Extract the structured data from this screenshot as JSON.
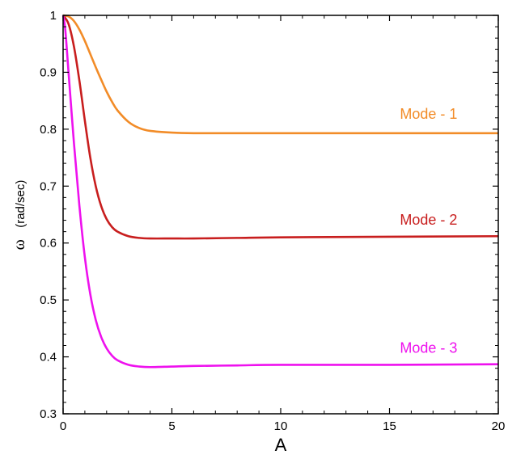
{
  "chart_data": {
    "type": "line",
    "title": "",
    "xlabel": "A",
    "ylabel": "ω",
    "ylabel_unit": "(rad/sec)",
    "xlim": [
      0,
      20
    ],
    "ylim": [
      0.3,
      1
    ],
    "xticks": [
      0,
      5,
      10,
      15,
      20
    ],
    "yticks": [
      0.3,
      0.4,
      0.5,
      0.6,
      0.7,
      0.8,
      0.9,
      1
    ],
    "xtick_labels": [
      "0",
      "5",
      "10",
      "15",
      "20"
    ],
    "ytick_labels": [
      "0.3",
      "0.4",
      "0.5",
      "0.6",
      "0.7",
      "0.8",
      "0.9",
      "1"
    ],
    "grid": false,
    "legend": "inline labels",
    "series": [
      {
        "name": "Mode - 1",
        "color": "#F28C28",
        "x": [
          0,
          0.25,
          0.5,
          0.75,
          1,
          1.25,
          1.5,
          1.75,
          2,
          2.25,
          2.5,
          3,
          3.5,
          4,
          5,
          6,
          8,
          10,
          15,
          20
        ],
        "y": [
          1.0,
          0.998,
          0.99,
          0.975,
          0.955,
          0.932,
          0.909,
          0.887,
          0.866,
          0.848,
          0.833,
          0.813,
          0.802,
          0.797,
          0.794,
          0.793,
          0.793,
          0.793,
          0.793,
          0.793
        ]
      },
      {
        "name": "Mode - 2",
        "color": "#C81E1E",
        "x": [
          0,
          0.25,
          0.5,
          0.75,
          1,
          1.25,
          1.5,
          1.75,
          2,
          2.25,
          2.5,
          3,
          3.5,
          4,
          5,
          6,
          8,
          10,
          15,
          20
        ],
        "y": [
          1.0,
          0.985,
          0.945,
          0.885,
          0.815,
          0.75,
          0.7,
          0.665,
          0.642,
          0.628,
          0.62,
          0.612,
          0.609,
          0.608,
          0.608,
          0.608,
          0.609,
          0.61,
          0.611,
          0.612
        ]
      },
      {
        "name": "Mode - 3",
        "color": "#EE11EE",
        "x": [
          0,
          0.1,
          0.25,
          0.5,
          0.75,
          1,
          1.25,
          1.5,
          1.75,
          2,
          2.25,
          2.5,
          3,
          3.5,
          4,
          5,
          6,
          8,
          10,
          15,
          20
        ],
        "y": [
          1.0,
          0.975,
          0.9,
          0.775,
          0.665,
          0.575,
          0.51,
          0.465,
          0.435,
          0.415,
          0.402,
          0.394,
          0.386,
          0.383,
          0.382,
          0.383,
          0.384,
          0.385,
          0.386,
          0.386,
          0.387
        ]
      }
    ],
    "annotations": [
      {
        "text": "Mode - 1",
        "x": 16.8,
        "y": 0.818,
        "color": "#F28C28"
      },
      {
        "text": "Mode - 2",
        "x": 16.8,
        "y": 0.632,
        "color": "#C81E1E"
      },
      {
        "text": "Mode - 3",
        "x": 16.8,
        "y": 0.407,
        "color": "#EE11EE"
      }
    ]
  }
}
